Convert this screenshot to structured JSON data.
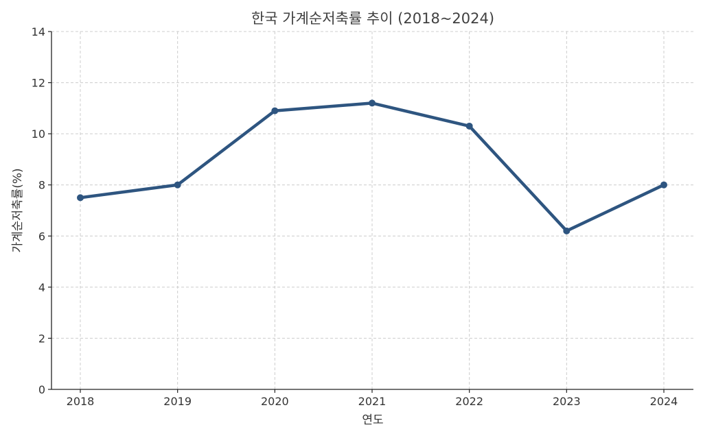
{
  "chart_data": {
    "type": "line",
    "title": "한국 가계순저축률 추이 (2018~2024)",
    "xlabel": "연도",
    "ylabel": "가계순저축률(%)",
    "x": [
      "2018",
      "2019",
      "2020",
      "2021",
      "2022",
      "2023",
      "2024"
    ],
    "series": [
      {
        "values": [
          7.5,
          8.0,
          10.9,
          11.2,
          10.3,
          6.2,
          8.0
        ],
        "color": "#2e5580"
      }
    ],
    "ylim": [
      0,
      14
    ],
    "yticks": [
      0,
      2,
      4,
      6,
      8,
      10,
      12,
      14
    ],
    "grid": true,
    "legend": "none"
  }
}
